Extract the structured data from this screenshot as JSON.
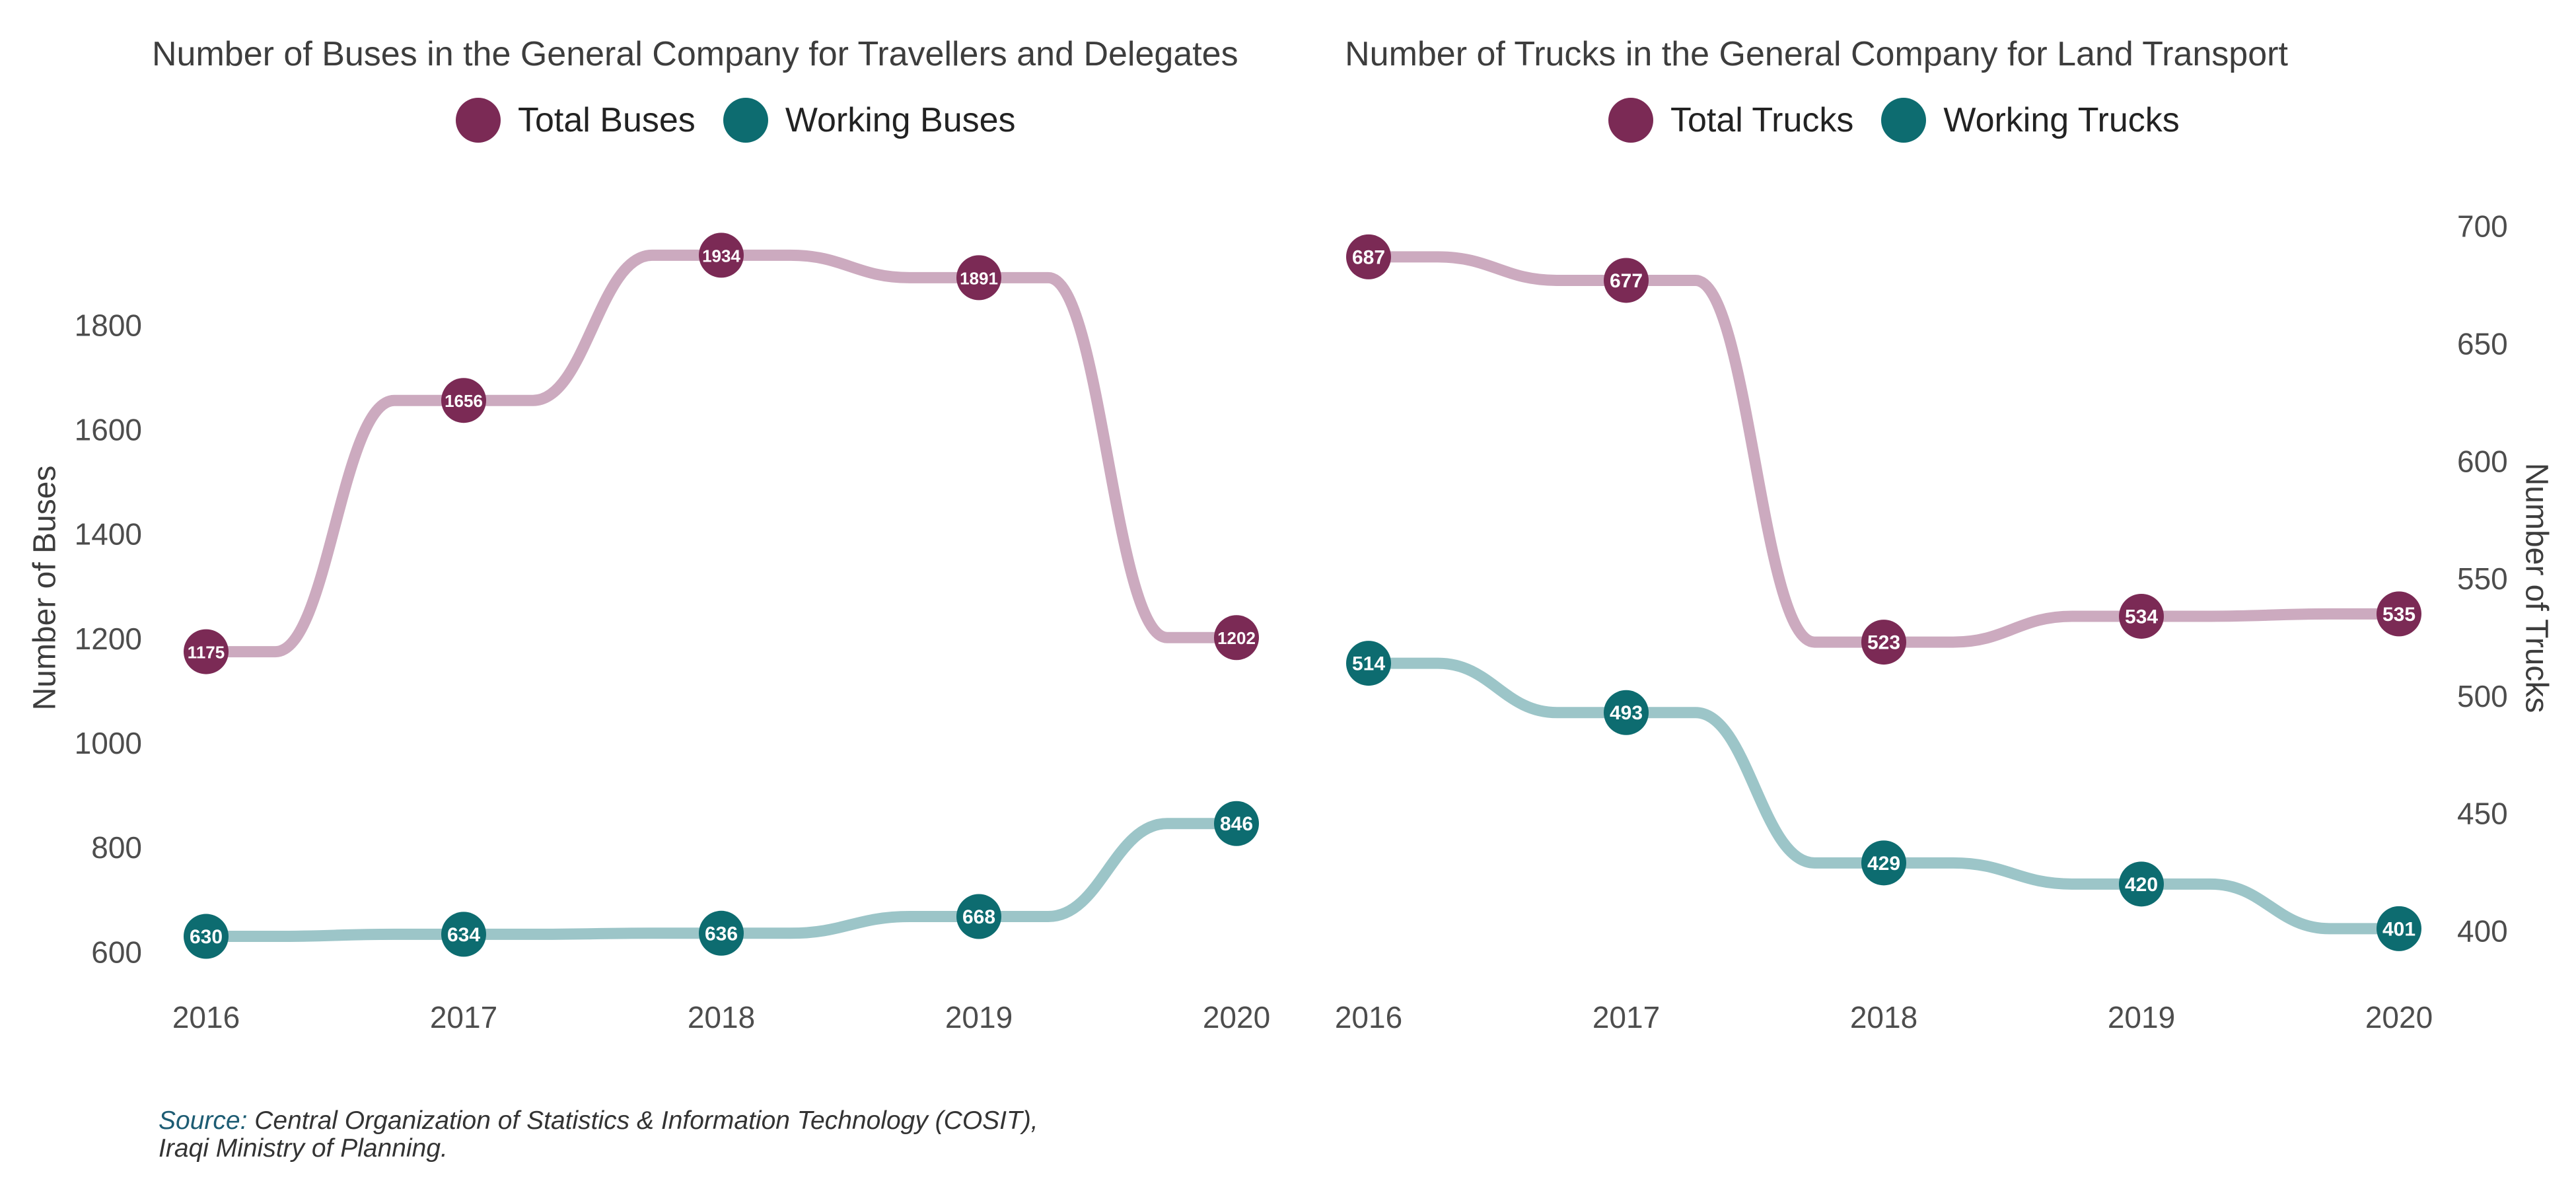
{
  "colors": {
    "total": "#7b2a55",
    "total_line": "#ccaabf",
    "working": "#0d6c70",
    "working_line": "#9cc5c8",
    "tick_text": "#4d4d4d"
  },
  "chart_data": [
    {
      "type": "line",
      "title": "Number of Buses in the General Company for Travellers and Delegates",
      "ylabel": "Number of Buses",
      "xlabel": "",
      "categories": [
        "2016",
        "2017",
        "2018",
        "2019",
        "2020"
      ],
      "y_ticks": [
        "600",
        "800",
        "1000",
        "1200",
        "1400",
        "1600",
        "1800"
      ],
      "ylim": [
        570,
        1980
      ],
      "series": [
        {
          "name": "Total Buses",
          "values": [
            1175,
            1656,
            1934,
            1891,
            1202
          ]
        },
        {
          "name": "Working Buses",
          "values": [
            630,
            634,
            636,
            668,
            846
          ]
        }
      ],
      "legend_position": "top",
      "grid": false
    },
    {
      "type": "line",
      "title": "Number of Trucks in the General Company for Land Transport",
      "ylabel": "Number of Trucks",
      "xlabel": "",
      "y_axis_side": "right",
      "categories": [
        "2016",
        "2017",
        "2018",
        "2019",
        "2020"
      ],
      "y_ticks": [
        "400",
        "450",
        "500",
        "550",
        "600",
        "650",
        "700"
      ],
      "ylim": [
        390,
        712
      ],
      "series": [
        {
          "name": "Total Trucks",
          "values": [
            687,
            677,
            523,
            534,
            535
          ]
        },
        {
          "name": "Working Trucks",
          "values": [
            514,
            493,
            429,
            420,
            401
          ]
        }
      ],
      "legend_position": "top",
      "grid": false
    }
  ],
  "source": {
    "label": "Source:",
    "text": "Central Organization of Statistics & Information Technology (COSIT),",
    "text_line2": "Iraqi Ministry of Planning."
  }
}
